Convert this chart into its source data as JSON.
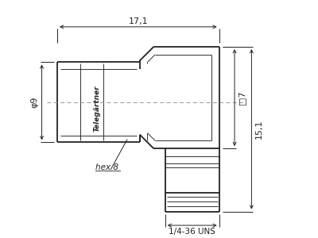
{
  "bg_color": "#ffffff",
  "line_color": "#222222",
  "dim_color": "#222222",
  "text_color": "#222222",
  "dim_17_1": "17,1",
  "dim_9": "φ9",
  "dim_7": "□7",
  "dim_15_1": "15,1",
  "label_hex": "hex 8",
  "label_thread": "1/4-36 UNS",
  "label_brand": "Telegärtner"
}
